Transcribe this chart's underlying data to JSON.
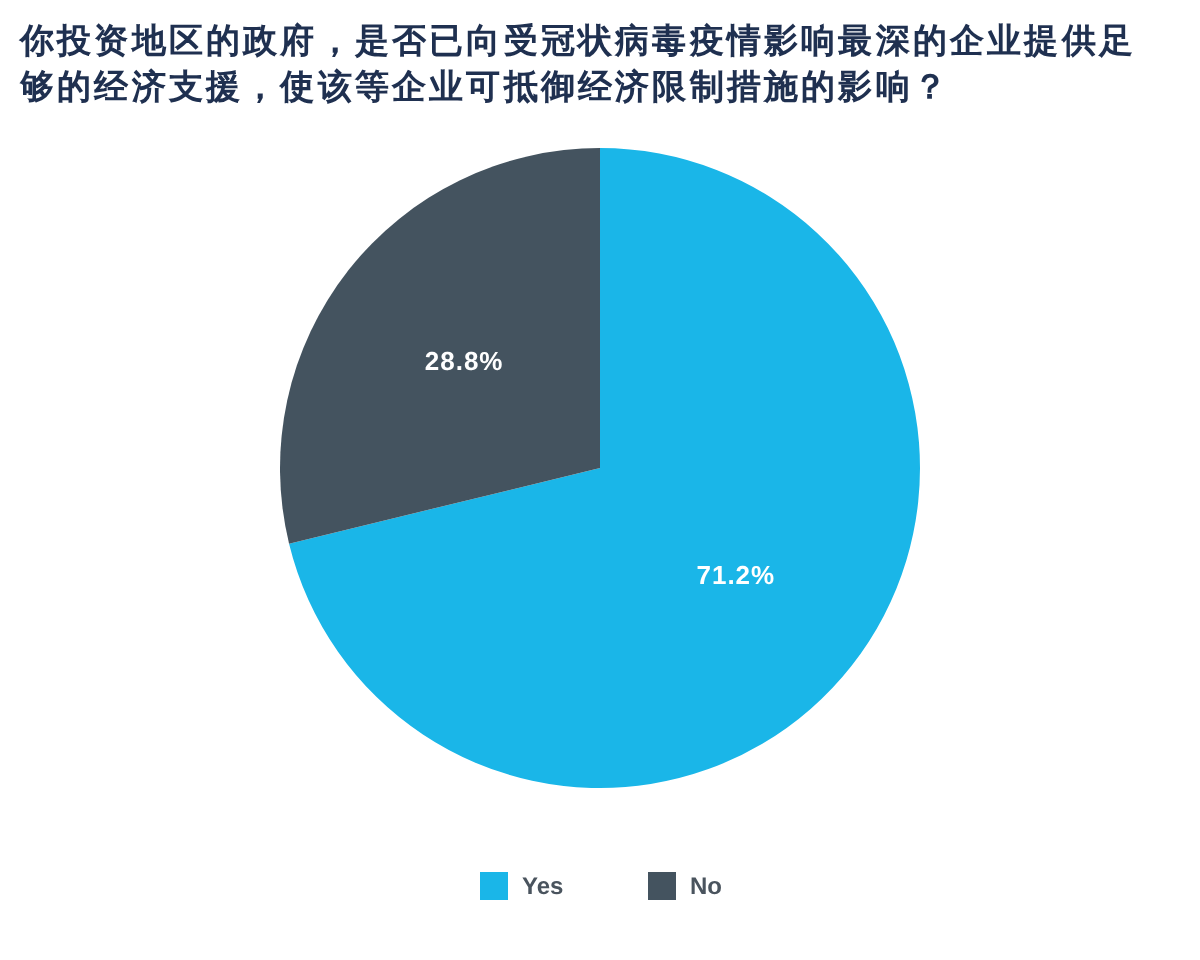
{
  "chart_data": {
    "type": "pie",
    "title": "你投资地区的政府，是否已向受冠状病毒疫情影响最深的企业提供足够的经济支援，使该等企业可抵御经济限制措施的影响？",
    "categories": [
      "Yes",
      "No"
    ],
    "values": [
      71.2,
      28.8
    ],
    "colors": [
      "#1ab6e8",
      "#44535f"
    ],
    "value_labels": [
      "71.2%",
      "28.8%"
    ],
    "legend": "bottom"
  }
}
